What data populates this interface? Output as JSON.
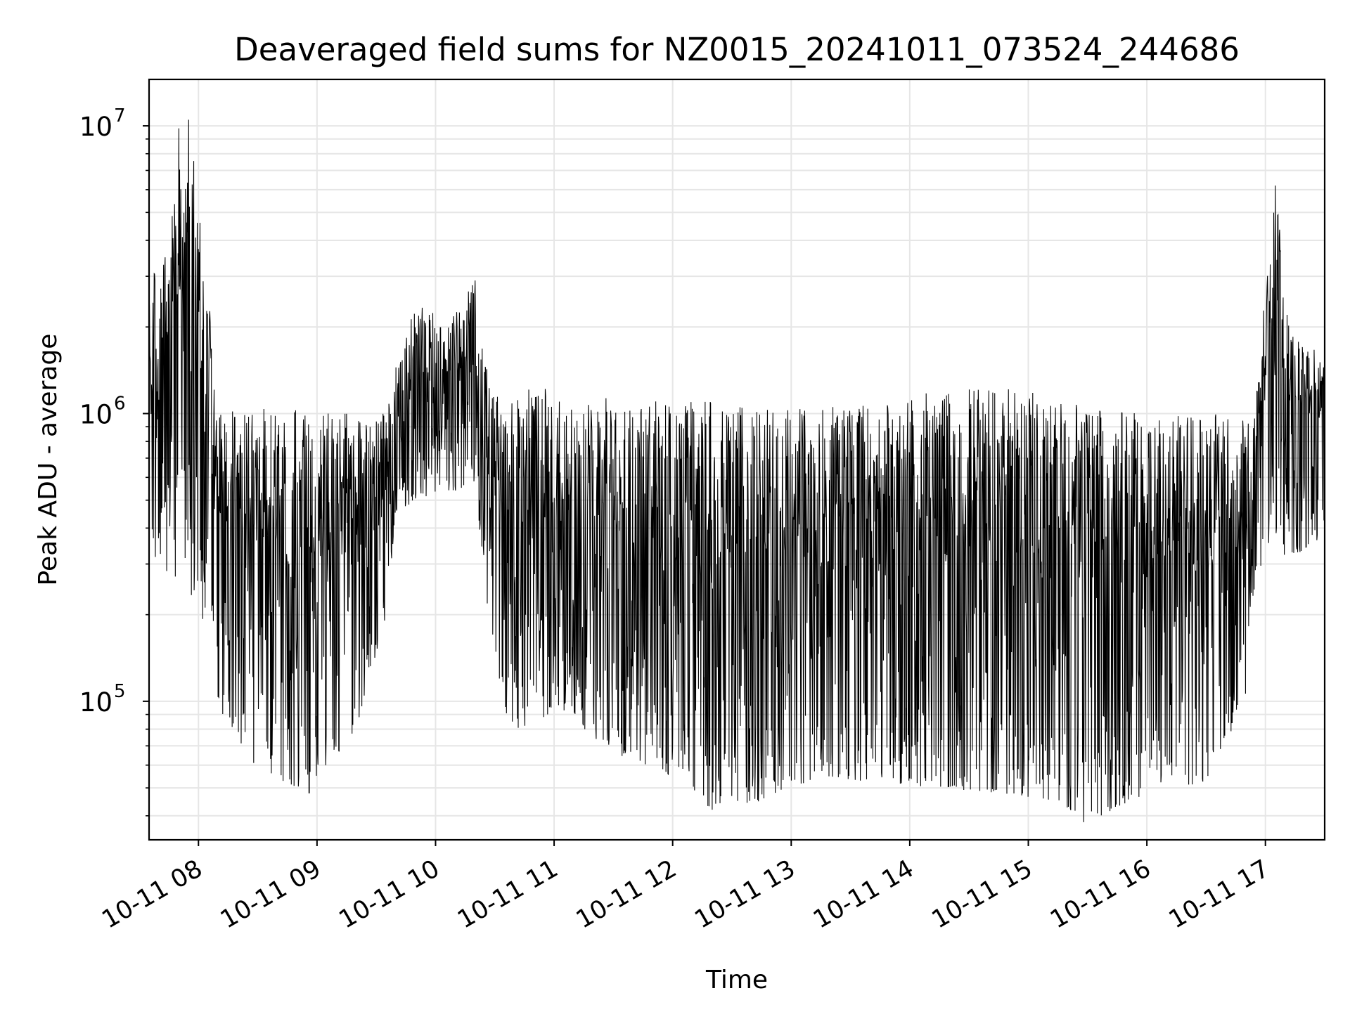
{
  "chart_data": {
    "type": "line",
    "title": "Deaveraged field sums for NZ0015_20241011_073524_244686",
    "xlabel": "Time",
    "ylabel": "Peak ADU - average",
    "y_scale": "log",
    "ylim": [
      33000,
      14500000
    ],
    "xlim": [
      "2024-10-11 07:35",
      "2024-10-11 17:30"
    ],
    "grid": true,
    "line_color": "#000000",
    "grid_color": "#e6e6e6",
    "xticks": [
      {
        "value": "2024-10-11 08:00",
        "label": "10-11 08"
      },
      {
        "value": "2024-10-11 09:00",
        "label": "10-11 09"
      },
      {
        "value": "2024-10-11 10:00",
        "label": "10-11 10"
      },
      {
        "value": "2024-10-11 11:00",
        "label": "10-11 11"
      },
      {
        "value": "2024-10-11 12:00",
        "label": "10-11 12"
      },
      {
        "value": "2024-10-11 13:00",
        "label": "10-11 13"
      },
      {
        "value": "2024-10-11 14:00",
        "label": "10-11 14"
      },
      {
        "value": "2024-10-11 15:00",
        "label": "10-11 15"
      },
      {
        "value": "2024-10-11 16:00",
        "label": "10-11 16"
      },
      {
        "value": "2024-10-11 17:00",
        "label": "10-11 17"
      }
    ],
    "yticks": [
      {
        "value": 100000,
        "base": "10",
        "exponent": "5"
      },
      {
        "value": 1000000,
        "base": "10",
        "exponent": "6"
      },
      {
        "value": 10000000,
        "base": "10",
        "exponent": "7"
      }
    ],
    "envelope": [
      {
        "t": "2024-10-11 07:35",
        "lo": 300000,
        "hi": 2700000
      },
      {
        "t": "2024-10-11 07:45",
        "lo": 280000,
        "hi": 4500000
      },
      {
        "t": "2024-10-11 07:55",
        "lo": 230000,
        "hi": 10500000
      },
      {
        "t": "2024-10-11 08:05",
        "lo": 180000,
        "hi": 3000000
      },
      {
        "t": "2024-10-11 08:10",
        "lo": 95000,
        "hi": 1000000
      },
      {
        "t": "2024-10-11 08:30",
        "lo": 58000,
        "hi": 1050000
      },
      {
        "t": "2024-10-11 08:55",
        "lo": 48000,
        "hi": 1020000
      },
      {
        "t": "2024-10-11 09:20",
        "lo": 80000,
        "hi": 1000000
      },
      {
        "t": "2024-10-11 09:35",
        "lo": 200000,
        "hi": 1000000
      },
      {
        "t": "2024-10-11 09:40",
        "lo": 450000,
        "hi": 1500000
      },
      {
        "t": "2024-10-11 09:50",
        "lo": 500000,
        "hi": 2600000
      },
      {
        "t": "2024-10-11 10:05",
        "lo": 520000,
        "hi": 2000000
      },
      {
        "t": "2024-10-11 10:20",
        "lo": 560000,
        "hi": 2900000
      },
      {
        "t": "2024-10-11 10:25",
        "lo": 240000,
        "hi": 1500000
      },
      {
        "t": "2024-10-11 10:35",
        "lo": 90000,
        "hi": 1000000
      },
      {
        "t": "2024-10-11 10:50",
        "lo": 70000,
        "hi": 1400000
      },
      {
        "t": "2024-10-11 11:00",
        "lo": 100000,
        "hi": 1100000
      },
      {
        "t": "2024-10-11 11:30",
        "lo": 65000,
        "hi": 1150000
      },
      {
        "t": "2024-10-11 12:00",
        "lo": 55000,
        "hi": 1100000
      },
      {
        "t": "2024-10-11 12:20",
        "lo": 42000,
        "hi": 1100000
      },
      {
        "t": "2024-10-11 12:45",
        "lo": 45000,
        "hi": 1050000
      },
      {
        "t": "2024-10-11 13:15",
        "lo": 55000,
        "hi": 1050000
      },
      {
        "t": "2024-10-11 13:45",
        "lo": 52000,
        "hi": 1100000
      },
      {
        "t": "2024-10-11 14:15",
        "lo": 50000,
        "hi": 1200000
      },
      {
        "t": "2024-10-11 14:45",
        "lo": 48000,
        "hi": 1250000
      },
      {
        "t": "2024-10-11 15:15",
        "lo": 45000,
        "hi": 1150000
      },
      {
        "t": "2024-10-11 15:30",
        "lo": 38000,
        "hi": 1050000
      },
      {
        "t": "2024-10-11 16:00",
        "lo": 48000,
        "hi": 1000000
      },
      {
        "t": "2024-10-11 16:30",
        "lo": 52000,
        "hi": 1000000
      },
      {
        "t": "2024-10-11 16:50",
        "lo": 100000,
        "hi": 1000000
      },
      {
        "t": "2024-10-11 16:55",
        "lo": 280000,
        "hi": 1200000
      },
      {
        "t": "2024-10-11 17:05",
        "lo": 300000,
        "hi": 6200000
      },
      {
        "t": "2024-10-11 17:15",
        "lo": 320000,
        "hi": 1800000
      },
      {
        "t": "2024-10-11 17:30",
        "lo": 380000,
        "hi": 1700000
      }
    ],
    "spikes": [
      {
        "t": "2024-10-11 07:50",
        "v": 9800000
      },
      {
        "t": "2024-10-11 07:55",
        "v": 10500000
      },
      {
        "t": "2024-10-11 08:56",
        "v": 48000
      },
      {
        "t": "2024-10-11 10:20",
        "v": 2900000
      },
      {
        "t": "2024-10-11 12:20",
        "v": 42000
      },
      {
        "t": "2024-10-11 15:28",
        "v": 38000
      },
      {
        "t": "2024-10-11 17:05",
        "v": 6200000
      }
    ]
  }
}
